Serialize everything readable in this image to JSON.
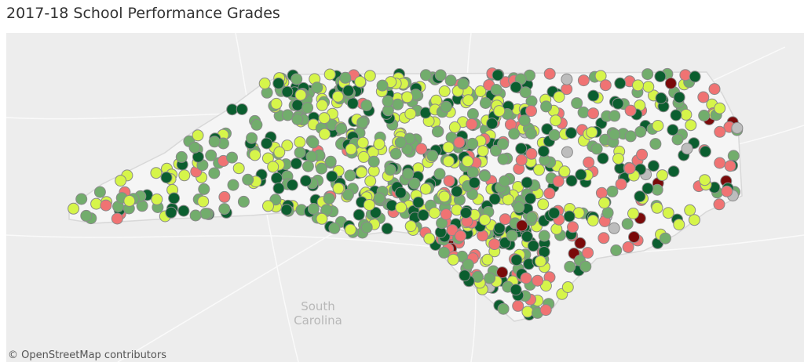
{
  "header": {
    "title": "2017-18 School Performance Grades"
  },
  "map": {
    "region_label": [
      "South",
      "Carolina"
    ],
    "attribution": "© OpenStreetMap contributors"
  }
}
